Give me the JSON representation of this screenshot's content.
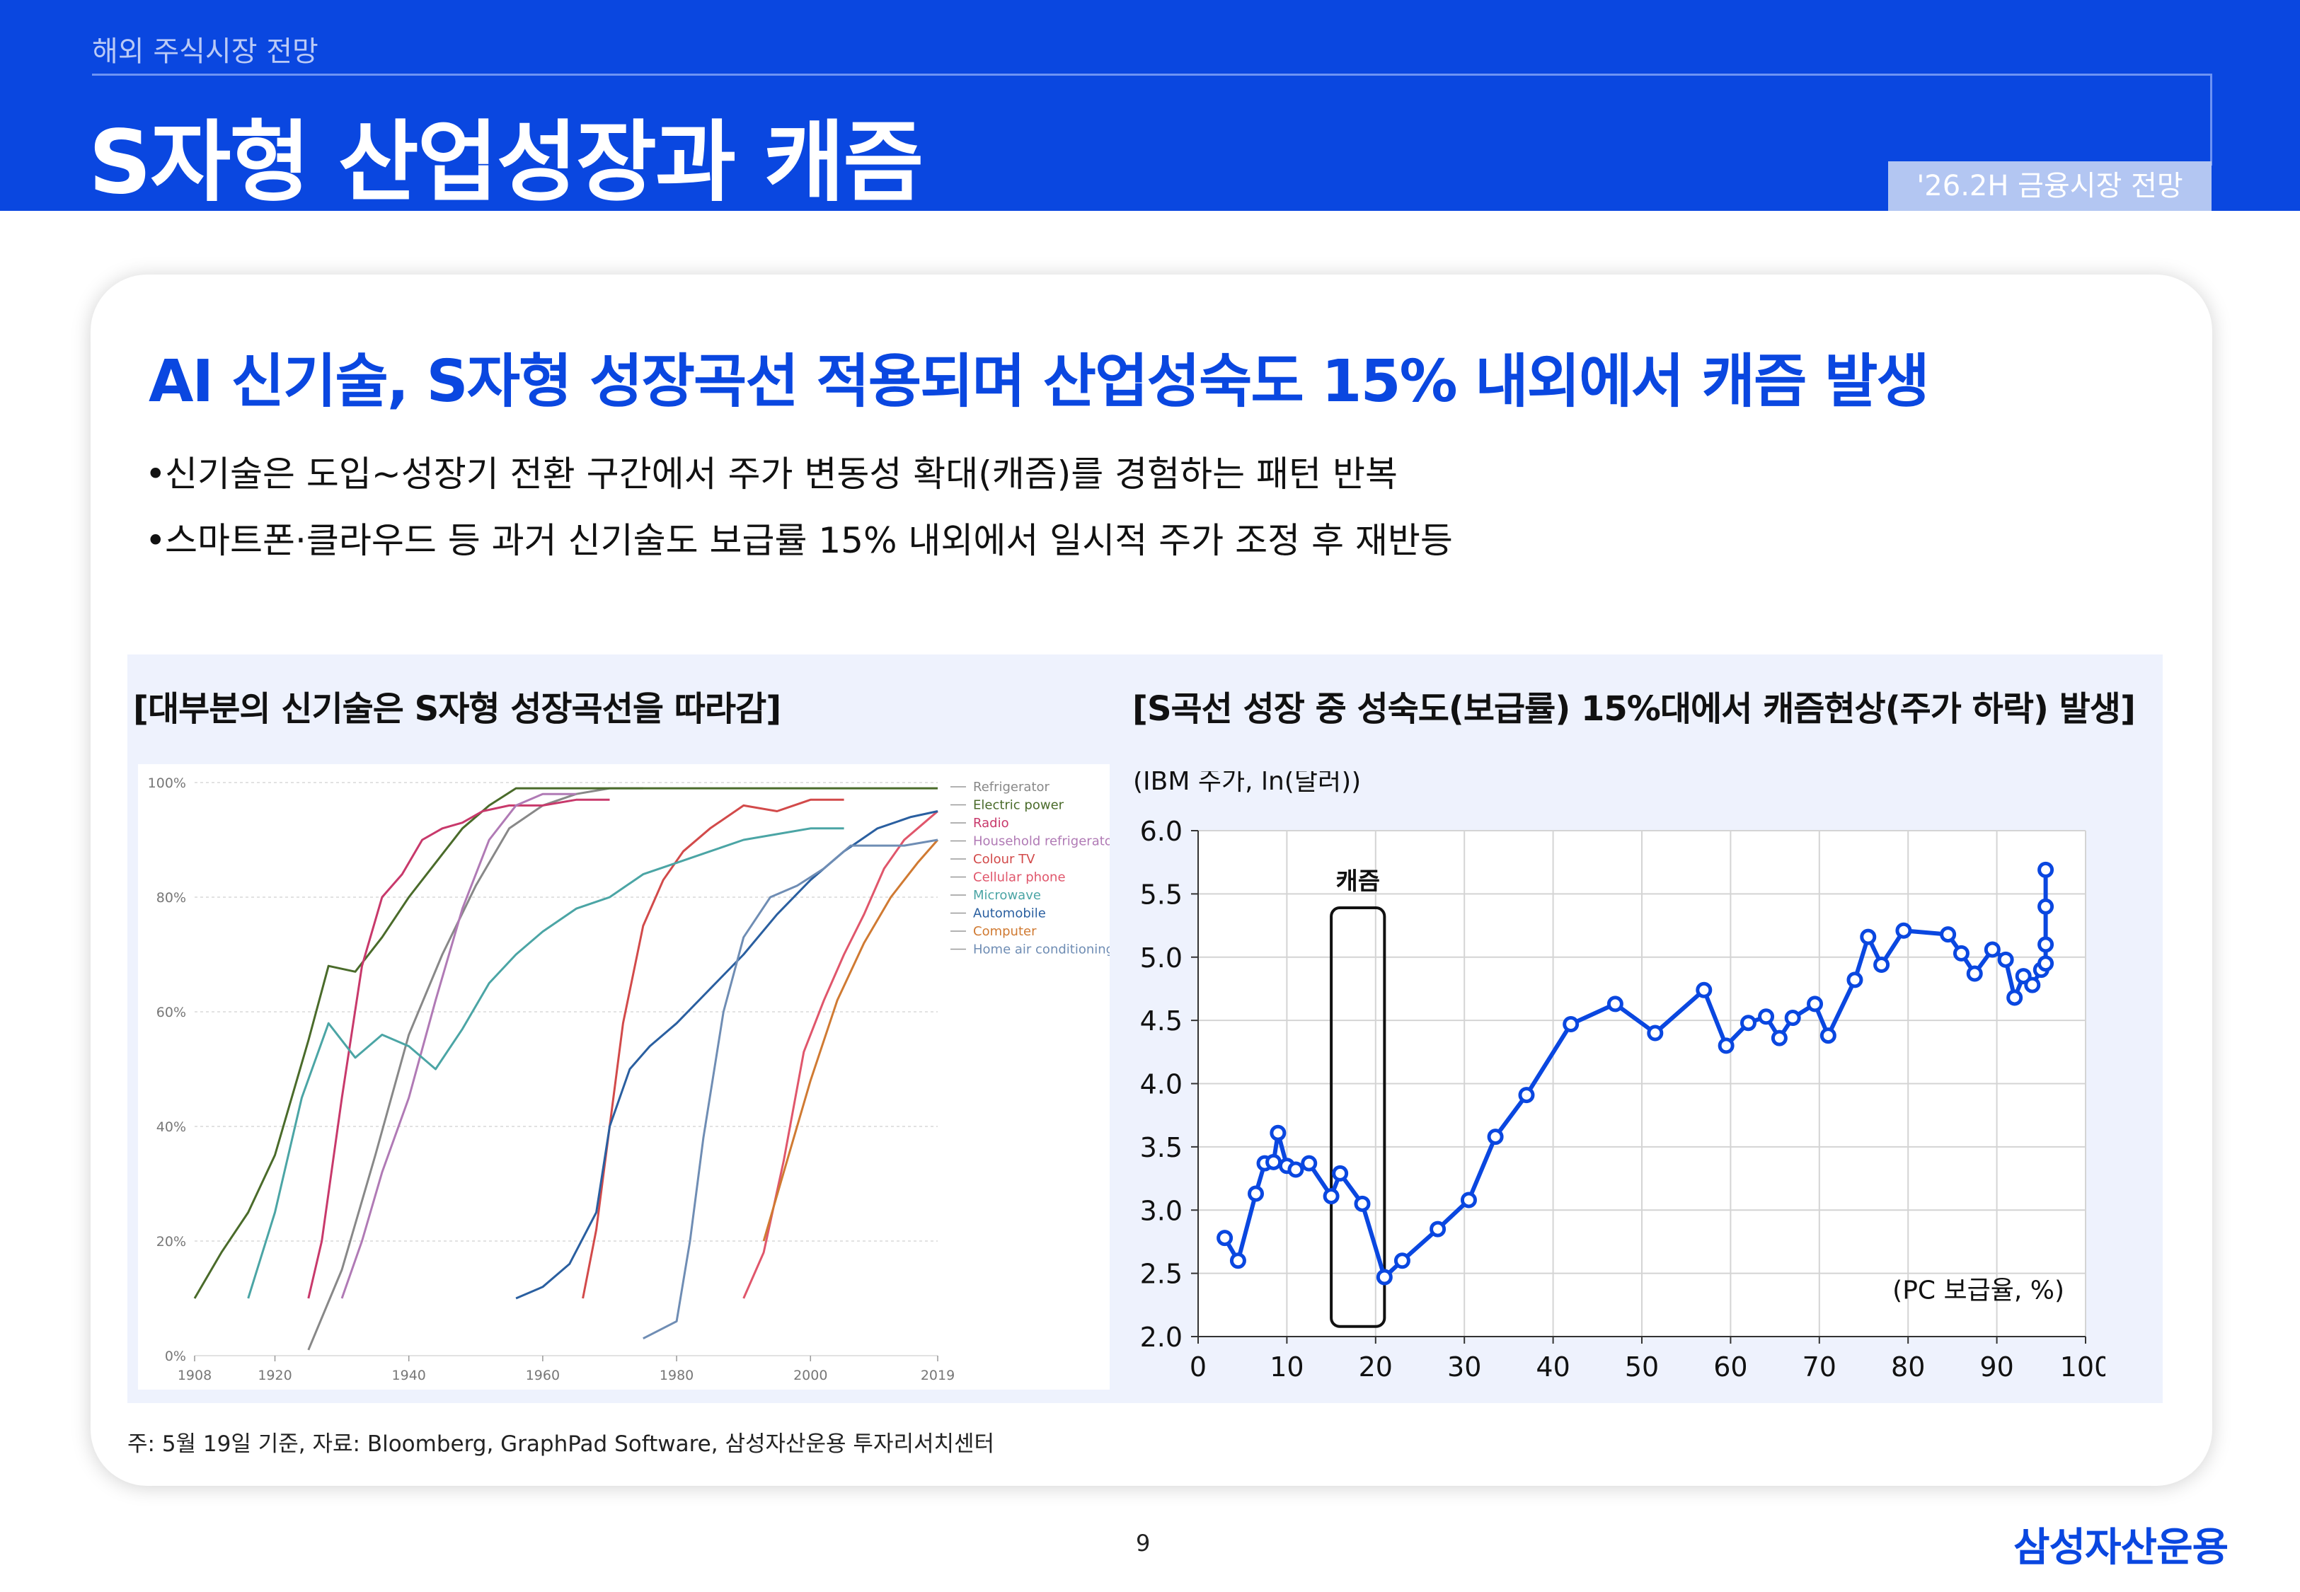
{
  "header": {
    "section_label": "해외 주식시장 전망",
    "title": "S자형 산업성장과 캐즘",
    "edition": "'26.2H 금융시장 전망"
  },
  "headline": "AI 신기술, S자형 성장곡선 적용되며 산업성숙도 15% 내외에서 캐즘 발생",
  "bullets": [
    "신기술은 도입~성장기 전환 구간에서 주가 변동성 확대(캐즘)를 경험하는 패턴 반복",
    "스마트폰·클라우드 등 과거 신기술도 보급률 15% 내외에서 일시적 주가 조정 후 재반등"
  ],
  "bullet_symbol": "•",
  "left_chart_title": "[대부분의 신기술은 S자형 성장곡선을 따라감]",
  "right_chart_title": "[S곡선 성장 중 성숙도(보급률) 15%대에서 캐즘현상(주가 하락) 발생]",
  "source_note": "주: 5월 19일 기준, 자료: Bloomberg, GraphPad Software, 삼성자산운용 투자리서치센터",
  "page_number": "9",
  "brand": "삼성자산운용",
  "colors": {
    "brand_blue": "#0a47e0",
    "panel_bg": "#eef2fd"
  },
  "chart_data": [
    {
      "type": "line",
      "xlim": [
        1908,
        2019
      ],
      "ylim": [
        0,
        100
      ],
      "x_ticks": [
        "1908",
        "1920",
        "1940",
        "1960",
        "1980",
        "2000",
        "2019"
      ],
      "y_ticks": [
        "0%",
        "20%",
        "40%",
        "60%",
        "80%",
        "100%"
      ],
      "grid": true,
      "legend_position": "right",
      "series": [
        {
          "name": "Refrigerator",
          "color": "#888888",
          "x": [
            1925,
            1930,
            1935,
            1940,
            1945,
            1950,
            1955,
            1960,
            1965,
            1970,
            1975
          ],
          "y": [
            1,
            15,
            35,
            56,
            70,
            82,
            92,
            96,
            98,
            99,
            99
          ]
        },
        {
          "name": "Electric power",
          "color": "#4a6b2a",
          "x": [
            1908,
            1912,
            1916,
            1920,
            1925,
            1928,
            1932,
            1936,
            1940,
            1944,
            1948,
            1952,
            1956,
            2019
          ],
          "y": [
            10,
            18,
            25,
            35,
            55,
            68,
            67,
            73,
            80,
            86,
            92,
            96,
            99,
            99
          ]
        },
        {
          "name": "Radio",
          "color": "#c8396b",
          "x": [
            1925,
            1927,
            1930,
            1933,
            1936,
            1939,
            1942,
            1945,
            1948,
            1951,
            1955,
            1960,
            1965,
            1970
          ],
          "y": [
            10,
            20,
            45,
            68,
            80,
            84,
            90,
            92,
            93,
            95,
            96,
            96,
            97,
            97
          ]
        },
        {
          "name": "Household refrigerator",
          "color": "#b07ab5",
          "x": [
            1930,
            1933,
            1936,
            1940,
            1944,
            1948,
            1952,
            1956,
            1960,
            1965
          ],
          "y": [
            10,
            20,
            32,
            45,
            62,
            78,
            90,
            96,
            98,
            98
          ]
        },
        {
          "name": "Colour TV",
          "color": "#d24a4a",
          "x": [
            1966,
            1968,
            1970,
            1972,
            1975,
            1978,
            1981,
            1985,
            1990,
            1995,
            2000,
            2005
          ],
          "y": [
            10,
            22,
            40,
            58,
            75,
            83,
            88,
            92,
            96,
            95,
            97,
            97
          ]
        },
        {
          "name": "Cellular phone",
          "color": "#e0566b",
          "x": [
            1990,
            1993,
            1996,
            1999,
            2002,
            2005,
            2008,
            2011,
            2014,
            2017,
            2019
          ],
          "y": [
            10,
            18,
            34,
            53,
            62,
            70,
            77,
            85,
            90,
            93,
            95
          ]
        },
        {
          "name": "Microwave",
          "color": "#4ba5a5",
          "x": [
            1916,
            1920,
            1924,
            1928,
            1932,
            1936,
            1940,
            1944,
            1948,
            1952,
            1956,
            1960,
            1965,
            1970,
            1975,
            1980,
            1985,
            1990,
            1995,
            2000,
            2005
          ],
          "y": [
            10,
            25,
            45,
            58,
            52,
            56,
            54,
            50,
            57,
            65,
            70,
            74,
            78,
            80,
            84,
            86,
            88,
            90,
            91,
            92,
            92
          ]
        },
        {
          "name": "Automobile",
          "color": "#2a5fa0",
          "x": [
            1956,
            1960,
            1964,
            1968,
            1970,
            1973,
            1976,
            1980,
            1985,
            1990,
            1995,
            2000,
            2005,
            2010,
            2015,
            2019
          ],
          "y": [
            10,
            12,
            16,
            25,
            40,
            50,
            54,
            58,
            64,
            70,
            77,
            83,
            88,
            92,
            94,
            95
          ]
        },
        {
          "name": "Computer",
          "color": "#d07a32",
          "x": [
            1993,
            1996,
            2000,
            2004,
            2008,
            2012,
            2016,
            2019
          ],
          "y": [
            20,
            32,
            48,
            62,
            72,
            80,
            86,
            90
          ]
        },
        {
          "name": "Home air conditioning",
          "color": "#6f8db4",
          "x": [
            1975,
            1980,
            1982,
            1984,
            1987,
            1990,
            1994,
            1998,
            2002,
            2006,
            2010,
            2014,
            2019
          ],
          "y": [
            3,
            6,
            20,
            38,
            60,
            73,
            80,
            82,
            85,
            89,
            89,
            89,
            90
          ]
        }
      ]
    },
    {
      "type": "line",
      "ylabel": "(IBM 주가, ln(달러))",
      "xlabel": "(PC 보급율, %)",
      "annotation": "캐즘",
      "chasm_range_x": [
        15,
        21
      ],
      "xlim": [
        0,
        100
      ],
      "ylim": [
        2.0,
        6.0
      ],
      "x_ticks": [
        "0",
        "10",
        "20",
        "30",
        "40",
        "50",
        "60",
        "70",
        "80",
        "90",
        "100"
      ],
      "y_ticks": [
        "2.0",
        "2.5",
        "3.0",
        "3.5",
        "4.0",
        "4.5",
        "5.0",
        "5.5",
        "6.0"
      ],
      "grid": true,
      "series": [
        {
          "color": "#0a47e0",
          "x": [
            3.0,
            4.5,
            6.5,
            7.5,
            8.5,
            9.0,
            10.0,
            11.0,
            12.5,
            15.0,
            16.0,
            18.5,
            21.0,
            23.0,
            27.0,
            30.5,
            33.5,
            37.0,
            42.0,
            47.0,
            51.5,
            57.0,
            59.5,
            62.0,
            64.0,
            65.5,
            67.0,
            69.5,
            71.0,
            74.0,
            75.5,
            77.0,
            79.5,
            84.5,
            86.0,
            87.5,
            89.5,
            91.0,
            92.0,
            93.0,
            94.0,
            95.0,
            95.5,
            95.5,
            95.5,
            95.5
          ],
          "y": [
            2.78,
            2.6,
            3.13,
            3.37,
            3.38,
            3.61,
            3.35,
            3.32,
            3.37,
            3.11,
            3.29,
            3.05,
            2.47,
            2.6,
            2.85,
            3.08,
            3.58,
            3.91,
            4.47,
            4.63,
            4.4,
            4.74,
            4.3,
            4.48,
            4.53,
            4.36,
            4.52,
            4.63,
            4.38,
            4.82,
            5.16,
            4.94,
            5.21,
            5.18,
            5.03,
            4.87,
            5.06,
            4.98,
            4.68,
            4.85,
            4.78,
            4.9,
            4.95,
            5.1,
            5.4,
            5.69
          ]
        }
      ]
    }
  ]
}
